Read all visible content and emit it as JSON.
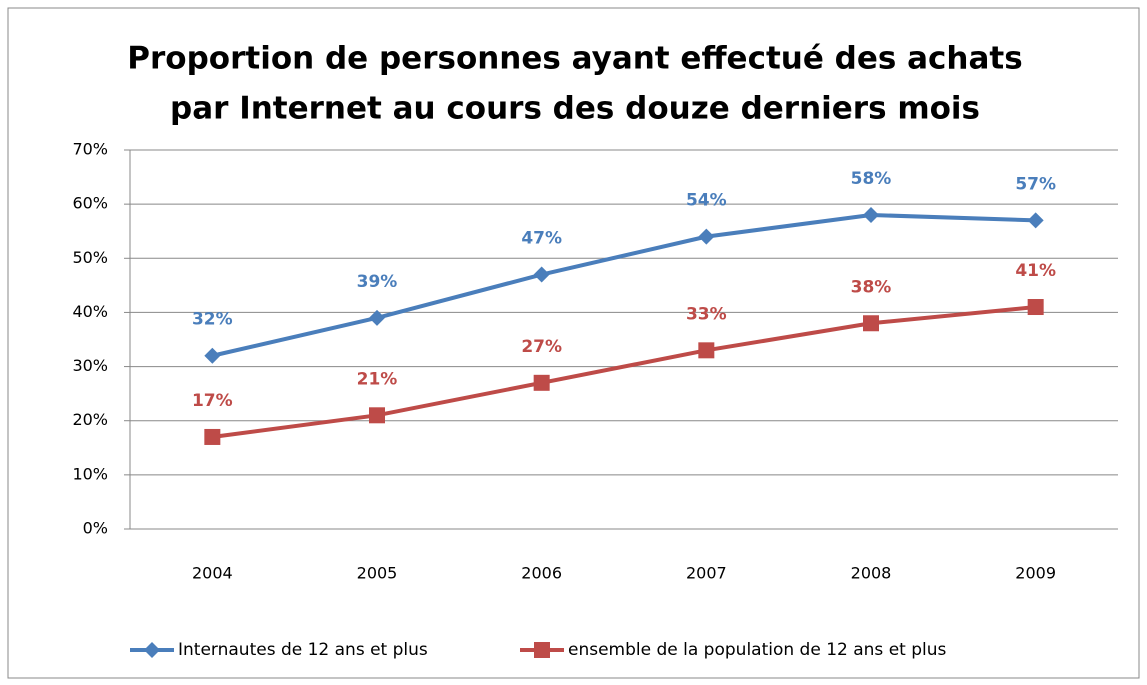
{
  "chart_data": {
    "type": "line",
    "title": [
      "Proportion de personnes ayant effectué des achats",
      "par Internet au cours des douze derniers mois"
    ],
    "categories": [
      "2004",
      "2005",
      "2006",
      "2007",
      "2008",
      "2009"
    ],
    "series": [
      {
        "name": "Internautes de 12 ans et plus",
        "color": "#4a7ebb",
        "marker": "diamond",
        "values": [
          32,
          39,
          47,
          54,
          58,
          57
        ],
        "value_labels": [
          "32%",
          "39%",
          "47%",
          "54%",
          "58%",
          "57%"
        ]
      },
      {
        "name": "ensemble de la population de 12 ans et plus",
        "color": "#be4b48",
        "marker": "square",
        "values": [
          17,
          21,
          27,
          33,
          38,
          41
        ],
        "value_labels": [
          "17%",
          "21%",
          "27%",
          "33%",
          "38%",
          "41%"
        ]
      }
    ],
    "ylim": [
      0,
      70
    ],
    "yticks": [
      {
        "value": 0,
        "label": "0%"
      },
      {
        "value": 10,
        "label": "10%"
      },
      {
        "value": 20,
        "label": "20%"
      },
      {
        "value": 30,
        "label": "30%"
      },
      {
        "value": 40,
        "label": "40%"
      },
      {
        "value": 50,
        "label": "50%"
      },
      {
        "value": 60,
        "label": "60%"
      },
      {
        "value": 70,
        "label": "70%"
      }
    ],
    "grid": true,
    "legend": "bottom"
  }
}
